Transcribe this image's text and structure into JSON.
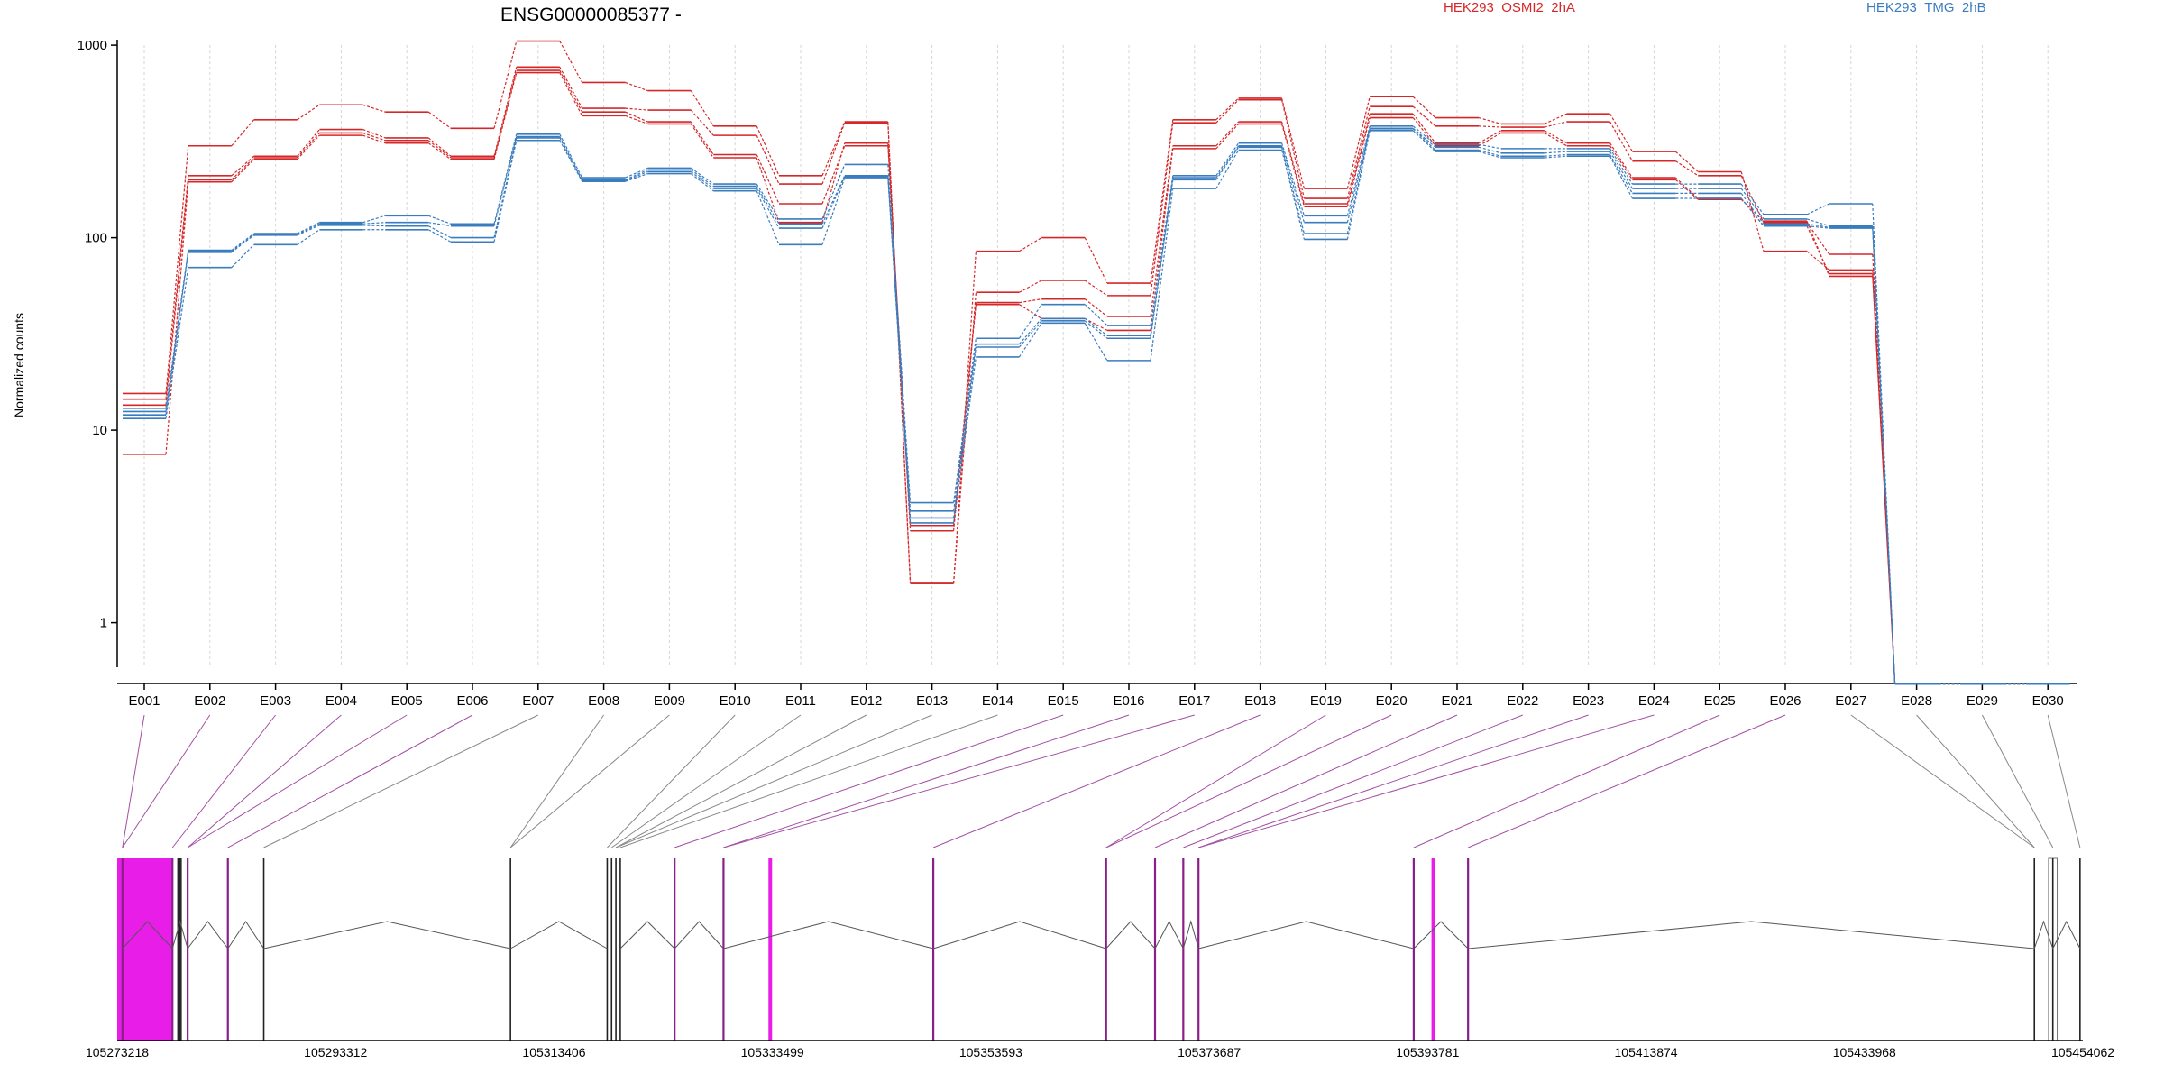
{
  "chart_data": {
    "type": "line",
    "title": "ENSG00000085377 -",
    "ylabel": "Normalized counts",
    "yscale": "log",
    "ylim": [
      0.4,
      1500
    ],
    "yticks": [
      1,
      10,
      100,
      1000
    ],
    "ytick_labels": [
      "1",
      "10",
      "100",
      "1000"
    ],
    "legend_position": "top-right",
    "grid": "vertical-dotted",
    "colors": {
      "HEK293_OSMI2_2hA": "#d62728",
      "HEK293_TMG_2hB": "#3a7dbf",
      "highlight": "#e81ee8",
      "neutral": "#555555"
    },
    "categories": [
      "E001",
      "E002",
      "E003",
      "E004",
      "E005",
      "E006",
      "E007",
      "E008",
      "E009",
      "E010",
      "E011",
      "E012",
      "E013",
      "E014",
      "E015",
      "E016",
      "E017",
      "E018",
      "E019",
      "E020",
      "E021",
      "E022",
      "E023",
      "E024",
      "E025",
      "E026",
      "E027",
      "E028",
      "E029",
      "E030"
    ],
    "series": [
      {
        "name": "HEK293_OSMI2_2hA",
        "color": "#d62728",
        "values": [
          15.5,
          300,
          410,
          490,
          450,
          370,
          1050,
          640,
          580,
          380,
          210,
          400,
          1.6,
          85,
          100,
          58,
          410,
          530,
          180,
          540,
          420,
          390,
          440,
          280,
          220,
          85,
          68,
          0.48,
          0.48,
          0.48
        ]
      },
      {
        "name": "",
        "color": "#d62728",
        "values": [
          14.5,
          210,
          265,
          365,
          330,
          265,
          770,
          470,
          460,
          340,
          190,
          395,
          1.6,
          52,
          60,
          50,
          395,
          520,
          160,
          480,
          380,
          375,
          400,
          250,
          210,
          120,
          82,
          0.48,
          0.48,
          0.48
        ]
      },
      {
        "name": "",
        "color": "#d62728",
        "values": [
          13.5,
          200,
          260,
          350,
          320,
          260,
          740,
          450,
          400,
          270,
          150,
          300,
          3.2,
          46,
          48,
          39,
          300,
          400,
          150,
          440,
          310,
          360,
          310,
          205,
          160,
          115,
          65,
          0.48,
          0.48,
          0.48
        ]
      },
      {
        "name": "",
        "color": "#d62728",
        "values": [
          7.5,
          195,
          255,
          340,
          310,
          255,
          720,
          430,
          390,
          260,
          120,
          310,
          3.0,
          45,
          38,
          33,
          290,
          390,
          145,
          420,
          300,
          350,
          300,
          200,
          158,
          122,
          63,
          0.48,
          0.48,
          0.48
        ]
      },
      {
        "name": "HEK293_TMG_2hB",
        "color": "#3a7dbf",
        "values": [
          13,
          86,
          105,
          120,
          130,
          118,
          345,
          205,
          230,
          190,
          125,
          240,
          4.2,
          30,
          45,
          35,
          210,
          310,
          130,
          380,
          305,
          290,
          290,
          190,
          190,
          132,
          150,
          0.48,
          0.48,
          0.48
        ]
      },
      {
        "name": "",
        "color": "#3a7dbf",
        "values": [
          12.5,
          85,
          104,
          118,
          120,
          115,
          335,
          200,
          225,
          185,
          118,
          210,
          3.8,
          28,
          38,
          31,
          205,
          300,
          120,
          370,
          295,
          275,
          280,
          180,
          180,
          125,
          115,
          0.48,
          0.48,
          0.48
        ]
      },
      {
        "name": "",
        "color": "#3a7dbf",
        "values": [
          12,
          84,
          103,
          116,
          115,
          100,
          330,
          198,
          220,
          180,
          112,
          208,
          3.5,
          27,
          37,
          30,
          200,
          295,
          105,
          368,
          285,
          265,
          270,
          170,
          170,
          118,
          113,
          0.48,
          0.48,
          0.48
        ]
      },
      {
        "name": "",
        "color": "#3a7dbf",
        "values": [
          11.5,
          70,
          92,
          110,
          110,
          95,
          320,
          196,
          215,
          175,
          92,
          205,
          3.3,
          24,
          36,
          23,
          180,
          285,
          98,
          360,
          280,
          260,
          265,
          160,
          160,
          115,
          112,
          0.48,
          0.48,
          0.48
        ]
      }
    ],
    "gene_coordinates": [
      "105273218",
      "105293312",
      "105313406",
      "105333499",
      "105353593",
      "105373687",
      "105393781",
      "105413874",
      "105433968",
      "105454062"
    ],
    "genomic_range": [
      105273218,
      105454062
    ],
    "exon_positions": [
      105273700,
      105278300,
      105279700,
      105283400,
      105286700,
      105309400,
      105318300,
      105318700,
      105319100,
      105319500,
      105324500,
      105329000,
      105348300,
      105364200,
      105368700,
      105371300,
      105372700,
      105392500,
      105397500,
      105449600,
      105451300,
      105453800
    ],
    "exon_highlight": [
      true,
      true,
      true,
      true,
      false,
      false,
      false,
      false,
      false,
      false,
      true,
      true,
      true,
      true,
      true,
      true,
      true,
      true,
      true,
      false,
      false,
      false
    ],
    "pink_block": [
      105273218,
      105278300
    ],
    "gray_blocks": [
      [
        105450900,
        105451700
      ]
    ],
    "extra_exon_lines": [
      105278800,
      105279000,
      105279100
    ],
    "thick_pink": [
      105333300,
      105394300
    ]
  }
}
